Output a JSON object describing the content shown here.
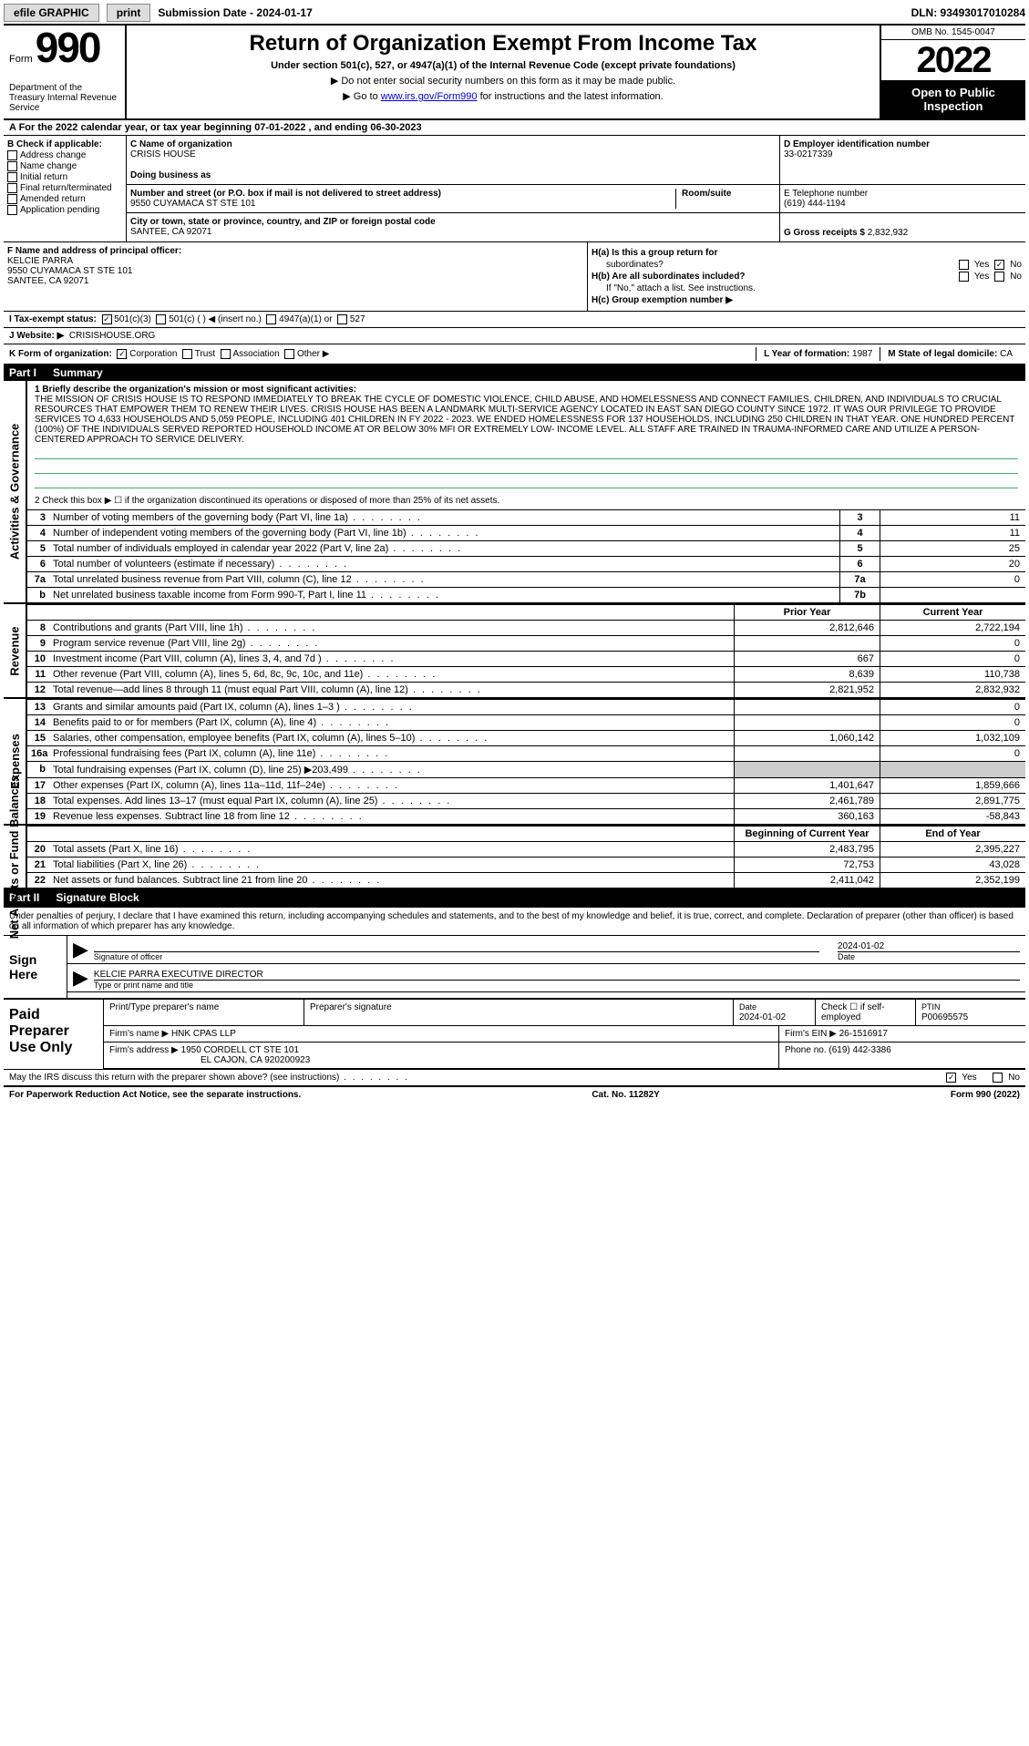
{
  "topbar": {
    "efile": "efile GRAPHIC",
    "print": "print",
    "subdate_label": "Submission Date - ",
    "subdate": "2024-01-17",
    "dln": "DLN: 93493017010284"
  },
  "header": {
    "form_word": "Form",
    "form_num": "990",
    "dept": "Department of the Treasury\nInternal Revenue Service",
    "title": "Return of Organization Exempt From Income Tax",
    "sub1": "Under section 501(c), 527, or 4947(a)(1) of the Internal Revenue Code (except private foundations)",
    "sub2": "▶ Do not enter social security numbers on this form as it may be made public.",
    "sub3_pre": "▶ Go to ",
    "sub3_link": "www.irs.gov/Form990",
    "sub3_post": " for instructions and the latest information.",
    "omb": "OMB No. 1545-0047",
    "year": "2022",
    "open": "Open to Public Inspection"
  },
  "period": "A  For the 2022 calendar year, or tax year beginning 07-01-2022   , and ending 06-30-2023",
  "box_b": {
    "head": "B Check if applicable:",
    "items": [
      "Address change",
      "Name change",
      "Initial return",
      "Final return/terminated",
      "Amended return",
      "Application pending"
    ]
  },
  "box_c": {
    "label": "C Name of organization",
    "name": "CRISIS HOUSE",
    "dba_label": "Doing business as",
    "addr_label": "Number and street (or P.O. box if mail is not delivered to street address)",
    "room_label": "Room/suite",
    "addr": "9550 CUYAMACA ST STE 101",
    "city_label": "City or town, state or province, country, and ZIP or foreign postal code",
    "city": "SANTEE, CA  92071"
  },
  "box_d": {
    "label": "D Employer identification number",
    "val": "33-0217339"
  },
  "box_e": {
    "label": "E Telephone number",
    "val": "(619) 444-1194"
  },
  "box_g": {
    "label": "G Gross receipts $",
    "val": "2,832,932"
  },
  "box_f": {
    "label": "F  Name and address of principal officer:",
    "name": "KELCIE PARRA",
    "addr1": "9550 CUYAMACA ST STE 101",
    "addr2": "SANTEE, CA  92071"
  },
  "box_h": {
    "ha": "H(a)  Is this a group return for",
    "ha2": "subordinates?",
    "hb": "H(b)  Are all subordinates included?",
    "hb2": "If \"No,\" attach a list. See instructions.",
    "hc": "H(c)  Group exemption number ▶"
  },
  "tax_status": {
    "lbl": "I   Tax-exempt status:",
    "o1": "501(c)(3)",
    "o2": "501(c) (  ) ◀ (insert no.)",
    "o3": "4947(a)(1) or",
    "o4": "527"
  },
  "website": {
    "lbl": "J  Website: ▶",
    "val": "CRISISHOUSE.ORG"
  },
  "korg": {
    "lbl": "K Form of organization:",
    "opts": [
      "Corporation",
      "Trust",
      "Association",
      "Other ▶"
    ],
    "l_lbl": "L Year of formation:",
    "l_val": "1987",
    "m_lbl": "M State of legal domicile:",
    "m_val": "CA"
  },
  "yes": "Yes",
  "no": "No",
  "part1": {
    "num": "Part I",
    "title": "Summary"
  },
  "mission": {
    "lbl": "1  Briefly describe the organization's mission or most significant activities:",
    "text": "THE MISSION OF CRISIS HOUSE IS TO RESPOND IMMEDIATELY TO BREAK THE CYCLE OF DOMESTIC VIOLENCE, CHILD ABUSE, AND HOMELESSNESS AND CONNECT FAMILIES, CHILDREN, AND INDIVIDUALS TO CRUCIAL RESOURCES THAT EMPOWER THEM TO RENEW THEIR LIVES. CRISIS HOUSE HAS BEEN A LANDMARK MULTI-SERVICE AGENCY LOCATED IN EAST SAN DIEGO COUNTY SINCE 1972. IT WAS OUR PRIVILEGE TO PROVIDE SERVICES TO 4,633 HOUSEHOLDS AND 5,059 PEOPLE, INCLUDING 401 CHILDREN IN FY 2022 - 2023. WE ENDED HOMELESSNESS FOR 137 HOUSEHOLDS, INCLUDING 250 CHILDREN IN THAT YEAR. ONE HUNDRED PERCENT (100%) OF THE INDIVIDUALS SERVED REPORTED HOUSEHOLD INCOME AT OR BELOW 30% MFI OR EXTREMELY LOW- INCOME LEVEL. ALL STAFF ARE TRAINED IN TRAUMA-INFORMED CARE AND UTILIZE A PERSON-CENTERED APPROACH TO SERVICE DELIVERY."
  },
  "line2": "2   Check this box ▶ ☐ if the organization discontinued its operations or disposed of more than 25% of its net assets.",
  "gov_lines": [
    {
      "n": "3",
      "t": "Number of voting members of the governing body (Part VI, line 1a)",
      "b": "3",
      "v": "11"
    },
    {
      "n": "4",
      "t": "Number of independent voting members of the governing body (Part VI, line 1b)",
      "b": "4",
      "v": "11"
    },
    {
      "n": "5",
      "t": "Total number of individuals employed in calendar year 2022 (Part V, line 2a)",
      "b": "5",
      "v": "25"
    },
    {
      "n": "6",
      "t": "Total number of volunteers (estimate if necessary)",
      "b": "6",
      "v": "20"
    },
    {
      "n": "7a",
      "t": "Total unrelated business revenue from Part VIII, column (C), line 12",
      "b": "7a",
      "v": "0"
    },
    {
      "n": "b",
      "t": "Net unrelated business taxable income from Form 990-T, Part I, line 11",
      "b": "7b",
      "v": ""
    }
  ],
  "prior_year": "Prior Year",
  "current_year": "Current Year",
  "revenue_label": "Revenue",
  "expenses_label": "Expenses",
  "netassets_label": "Net Assets or Fund Balances",
  "activities_label": "Activities & Governance",
  "rev_lines": [
    {
      "n": "8",
      "t": "Contributions and grants (Part VIII, line 1h)",
      "p": "2,812,646",
      "c": "2,722,194"
    },
    {
      "n": "9",
      "t": "Program service revenue (Part VIII, line 2g)",
      "p": "",
      "c": "0"
    },
    {
      "n": "10",
      "t": "Investment income (Part VIII, column (A), lines 3, 4, and 7d )",
      "p": "667",
      "c": "0"
    },
    {
      "n": "11",
      "t": "Other revenue (Part VIII, column (A), lines 5, 6d, 8c, 9c, 10c, and 11e)",
      "p": "8,639",
      "c": "110,738"
    },
    {
      "n": "12",
      "t": "Total revenue—add lines 8 through 11 (must equal Part VIII, column (A), line 12)",
      "p": "2,821,952",
      "c": "2,832,932"
    }
  ],
  "exp_lines": [
    {
      "n": "13",
      "t": "Grants and similar amounts paid (Part IX, column (A), lines 1–3 )",
      "p": "",
      "c": "0"
    },
    {
      "n": "14",
      "t": "Benefits paid to or for members (Part IX, column (A), line 4)",
      "p": "",
      "c": "0"
    },
    {
      "n": "15",
      "t": "Salaries, other compensation, employee benefits (Part IX, column (A), lines 5–10)",
      "p": "1,060,142",
      "c": "1,032,109"
    },
    {
      "n": "16a",
      "t": "Professional fundraising fees (Part IX, column (A), line 11e)",
      "p": "",
      "c": "0"
    },
    {
      "n": "b",
      "t": "Total fundraising expenses (Part IX, column (D), line 25) ▶203,499",
      "p": "shaded",
      "c": "shaded"
    },
    {
      "n": "17",
      "t": "Other expenses (Part IX, column (A), lines 11a–11d, 11f–24e)",
      "p": "1,401,647",
      "c": "1,859,666"
    },
    {
      "n": "18",
      "t": "Total expenses. Add lines 13–17 (must equal Part IX, column (A), line 25)",
      "p": "2,461,789",
      "c": "2,891,775"
    },
    {
      "n": "19",
      "t": "Revenue less expenses. Subtract line 18 from line 12",
      "p": "360,163",
      "c": "-58,843"
    }
  ],
  "boy": "Beginning of Current Year",
  "eoy": "End of Year",
  "na_lines": [
    {
      "n": "20",
      "t": "Total assets (Part X, line 16)",
      "p": "2,483,795",
      "c": "2,395,227"
    },
    {
      "n": "21",
      "t": "Total liabilities (Part X, line 26)",
      "p": "72,753",
      "c": "43,028"
    },
    {
      "n": "22",
      "t": "Net assets or fund balances. Subtract line 21 from line 20",
      "p": "2,411,042",
      "c": "2,352,199"
    }
  ],
  "part2": {
    "num": "Part II",
    "title": "Signature Block"
  },
  "sig": {
    "intro": "Under penalties of perjury, I declare that I have examined this return, including accompanying schedules and statements, and to the best of my knowledge and belief, it is true, correct, and complete. Declaration of preparer (other than officer) is based on all information of which preparer has any knowledge.",
    "sign_here": "Sign Here",
    "sig_of_officer": "Signature of officer",
    "date_lbl": "Date",
    "date": "2024-01-02",
    "name_title": "KELCIE PARRA  EXECUTIVE DIRECTOR",
    "type_name": "Type or print name and title"
  },
  "paid": {
    "lbl": "Paid Preparer Use Only",
    "h1": "Print/Type preparer's name",
    "h2": "Preparer's signature",
    "h3": "Date",
    "h3v": "2024-01-02",
    "h4": "Check ☐ if self-employed",
    "h5": "PTIN",
    "h5v": "P00695575",
    "firm_name_lbl": "Firm's name    ▶",
    "firm_name": "HNK CPAS LLP",
    "firm_ein_lbl": "Firm's EIN ▶",
    "firm_ein": "26-1516917",
    "firm_addr_lbl": "Firm's address ▶",
    "firm_addr1": "1950 CORDELL CT STE 101",
    "firm_addr2": "EL CAJON, CA  920200923",
    "phone_lbl": "Phone no.",
    "phone": "(619) 442-3386"
  },
  "discuss": "May the IRS discuss this return with the preparer shown above? (see instructions)",
  "paperwork": "For Paperwork Reduction Act Notice, see the separate instructions.",
  "catno": "Cat. No. 11282Y",
  "formfoot": "Form 990 (2022)"
}
